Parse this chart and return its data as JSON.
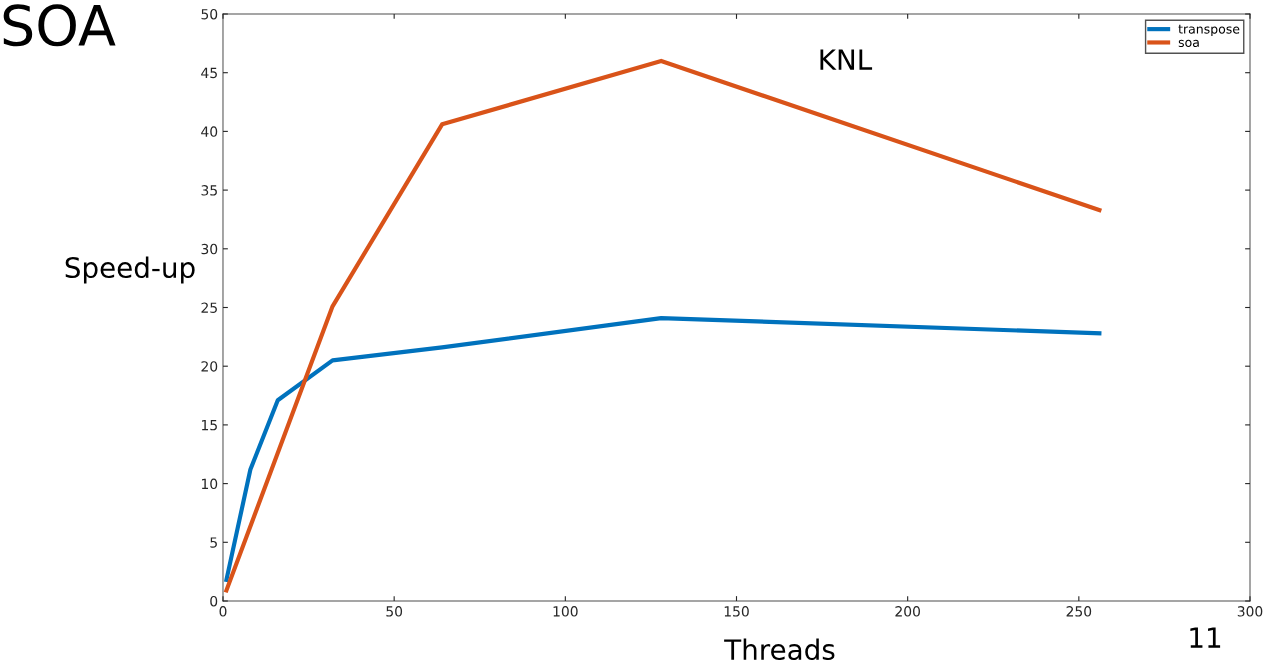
{
  "chart_data": {
    "type": "line",
    "title": "SOA",
    "xlabel": "Threads",
    "ylabel": "Speed-up",
    "annotations": [
      "KNL",
      "11"
    ],
    "series": [
      {
        "name": "transpose",
        "color": "#0072bd",
        "x": [
          1,
          8,
          16,
          32,
          64,
          128,
          256
        ],
        "values": [
          1.8,
          11.2,
          17.1,
          20.5,
          21.6,
          24.1,
          22.8
        ]
      },
      {
        "name": "soa",
        "color": "#d95319",
        "x": [
          1,
          32,
          64,
          128,
          256
        ],
        "values": [
          0.9,
          25.1,
          40.6,
          46.0,
          33.3
        ]
      }
    ],
    "xlim": [
      0,
      300
    ],
    "xticks": [
      0,
      50,
      100,
      150,
      200,
      250,
      300
    ],
    "ylim": [
      0,
      50
    ],
    "yticks": [
      0,
      5,
      10,
      15,
      20,
      25,
      30,
      35,
      40,
      45,
      50
    ],
    "legend": "top right",
    "grid": false,
    "marker": "none",
    "line_style": "solid"
  }
}
